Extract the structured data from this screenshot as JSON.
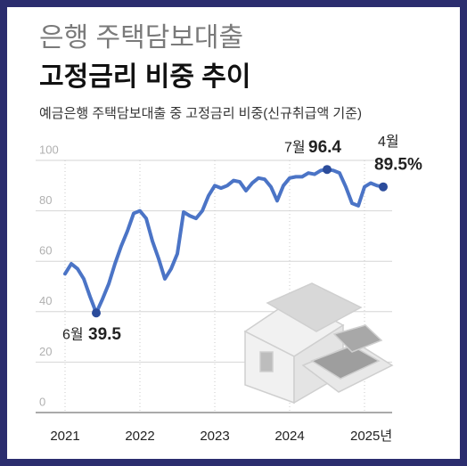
{
  "title": "은행 주택담보대출",
  "subtitle": "고정금리 비중 추이",
  "chart_data": {
    "type": "line",
    "title": "예금은행 주택담보대출 중 고정금리 비중(신규취급액 기준)",
    "categories": [
      "2021",
      null,
      null,
      null,
      null,
      null,
      null,
      null,
      null,
      null,
      null,
      null,
      "2022",
      null,
      null,
      null,
      null,
      null,
      null,
      null,
      null,
      null,
      null,
      null,
      "2023",
      null,
      null,
      null,
      null,
      null,
      null,
      null,
      null,
      null,
      null,
      null,
      "2024",
      null,
      null,
      null,
      null,
      null,
      null,
      null,
      null,
      null,
      null,
      null,
      "2025년",
      null,
      null,
      null
    ],
    "series": [
      {
        "name": "고정금리 비중",
        "color": "#4b74c6",
        "values": [
          55,
          59,
          57,
          53,
          46,
          39.5,
          45,
          51,
          59,
          66,
          72,
          79,
          80,
          77,
          68,
          61,
          53,
          57,
          63,
          79.5,
          78,
          77,
          80,
          86,
          90,
          89,
          90,
          92,
          91.5,
          88,
          91,
          93,
          92.5,
          89.5,
          84,
          90,
          93,
          93.5,
          93.5,
          95,
          94.5,
          96,
          96.4,
          96,
          95,
          89.5,
          83,
          82,
          89.5,
          91,
          90,
          89.5
        ],
        "value_labels": [
          null,
          null,
          null,
          null,
          null,
          "39.5",
          null,
          null,
          null,
          null,
          null,
          null,
          null,
          null,
          null,
          null,
          null,
          null,
          null,
          null,
          null,
          null,
          null,
          null,
          null,
          null,
          null,
          null,
          null,
          null,
          null,
          null,
          null,
          null,
          null,
          null,
          null,
          null,
          null,
          null,
          null,
          null,
          "96.4",
          null,
          null,
          null,
          null,
          null,
          null,
          null,
          null,
          "89.5%"
        ],
        "point_labels": [
          null,
          null,
          null,
          null,
          null,
          "6월",
          null,
          null,
          null,
          null,
          null,
          null,
          null,
          null,
          null,
          null,
          null,
          null,
          null,
          null,
          null,
          null,
          null,
          null,
          null,
          null,
          null,
          null,
          null,
          null,
          null,
          null,
          null,
          null,
          null,
          null,
          null,
          null,
          null,
          null,
          null,
          null,
          "7월",
          null,
          null,
          null,
          null,
          null,
          null,
          null,
          null,
          "4월"
        ]
      }
    ],
    "ylim": [
      0,
      100
    ],
    "yticks": [
      0,
      20,
      40,
      60,
      80,
      100
    ],
    "grid": true
  }
}
